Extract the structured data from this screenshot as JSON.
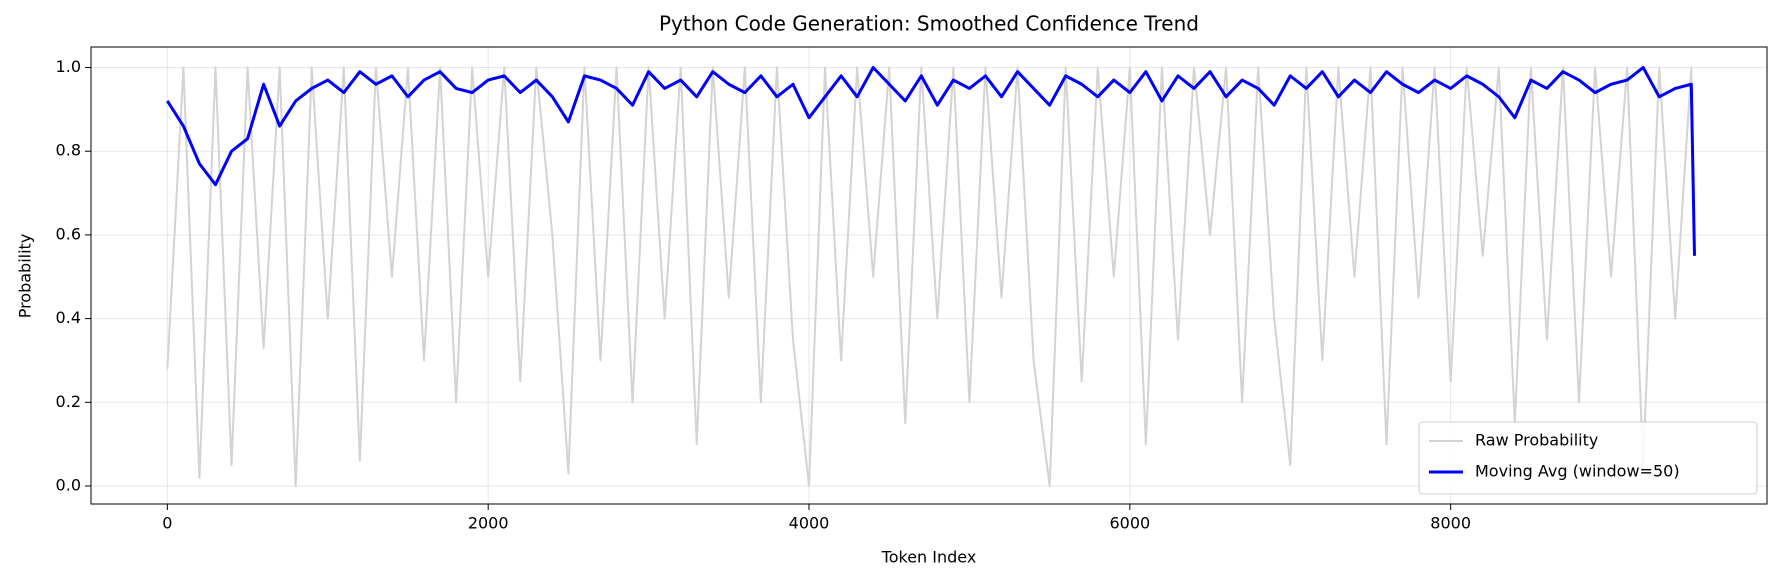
{
  "chart_data": {
    "type": "line",
    "title": "Python Code Generation: Smoothed Confidence Trend",
    "x_label": "Token Index",
    "y_label": "Probability",
    "x": [
      0,
      100,
      200,
      300,
      400,
      500,
      600,
      700,
      800,
      900,
      1000,
      1100,
      1200,
      1300,
      1400,
      1500,
      1600,
      1700,
      1800,
      1900,
      2000,
      2100,
      2200,
      2300,
      2400,
      2500,
      2600,
      2700,
      2800,
      2900,
      3000,
      3100,
      3200,
      3300,
      3400,
      3500,
      3600,
      3700,
      3800,
      3900,
      4000,
      4100,
      4200,
      4300,
      4400,
      4500,
      4600,
      4700,
      4800,
      4900,
      5000,
      5100,
      5200,
      5300,
      5400,
      5500,
      5600,
      5700,
      5800,
      5900,
      6000,
      6100,
      6200,
      6300,
      6400,
      6500,
      6600,
      6700,
      6800,
      6900,
      7000,
      7100,
      7200,
      7300,
      7400,
      7500,
      7600,
      7700,
      7800,
      7900,
      8000,
      8100,
      8200,
      8300,
      8400,
      8500,
      8600,
      8700,
      8800,
      8900,
      9000,
      9100,
      9200,
      9300,
      9400,
      9500,
      9520
    ],
    "series": [
      {
        "name": "Raw Probability",
        "color": "#d3d3d3",
        "values": [
          0.28,
          1,
          0.02,
          1,
          0.05,
          1,
          0.33,
          1,
          0.0,
          1,
          0.4,
          1,
          0.06,
          1,
          0.5,
          1,
          0.3,
          1,
          0.2,
          1,
          0.5,
          1,
          0.25,
          1,
          0.6,
          0.03,
          1,
          0.3,
          1,
          0.2,
          1,
          0.4,
          1,
          0.1,
          1,
          0.45,
          1,
          0.2,
          1,
          0.35,
          0.0,
          1,
          0.3,
          1,
          0.5,
          1,
          0.15,
          1,
          0.4,
          1,
          0.2,
          1,
          0.45,
          1,
          0.3,
          0.0,
          1,
          0.25,
          1,
          0.5,
          1,
          0.1,
          1,
          0.35,
          1,
          0.6,
          1,
          0.2,
          1,
          0.4,
          0.05,
          1,
          0.3,
          1,
          0.5,
          1,
          0.1,
          1,
          0.45,
          1,
          0.25,
          1,
          0.55,
          1,
          0.15,
          1,
          0.35,
          1,
          0.2,
          1,
          0.5,
          1,
          0.05,
          1,
          0.4,
          1,
          0.6
        ]
      },
      {
        "name": "Moving Avg (window=50)",
        "color": "#0000ff",
        "values": [
          0.92,
          0.86,
          0.77,
          0.72,
          0.8,
          0.83,
          0.96,
          0.86,
          0.92,
          0.95,
          0.97,
          0.94,
          0.99,
          0.96,
          0.98,
          0.93,
          0.97,
          0.99,
          0.95,
          0.94,
          0.97,
          0.98,
          0.94,
          0.97,
          0.93,
          0.87,
          0.98,
          0.97,
          0.95,
          0.91,
          0.99,
          0.95,
          0.97,
          0.93,
          0.99,
          0.96,
          0.94,
          0.98,
          0.93,
          0.96,
          0.88,
          0.93,
          0.98,
          0.93,
          1.0,
          0.96,
          0.92,
          0.98,
          0.91,
          0.97,
          0.95,
          0.98,
          0.93,
          0.99,
          0.95,
          0.91,
          0.98,
          0.96,
          0.93,
          0.97,
          0.94,
          0.99,
          0.92,
          0.98,
          0.95,
          0.99,
          0.93,
          0.97,
          0.95,
          0.91,
          0.98,
          0.95,
          0.99,
          0.93,
          0.97,
          0.94,
          0.99,
          0.96,
          0.94,
          0.97,
          0.95,
          0.98,
          0.96,
          0.93,
          0.88,
          0.97,
          0.95,
          0.99,
          0.97,
          0.94,
          0.96,
          0.97,
          1.0,
          0.93,
          0.95,
          0.96,
          0.55
        ]
      }
    ],
    "xlim": [
      -476,
      9972
    ],
    "xticks": [
      0,
      2000,
      4000,
      6000,
      8000
    ],
    "ylim": [
      -0.043,
      1.049
    ],
    "yticks": [
      {
        "value": 0,
        "label": "0.0"
      },
      0.2,
      0.4,
      0.6,
      0.8,
      {
        "value": 1,
        "label": "1.0"
      }
    ],
    "grid": true,
    "legend": "lower right"
  }
}
